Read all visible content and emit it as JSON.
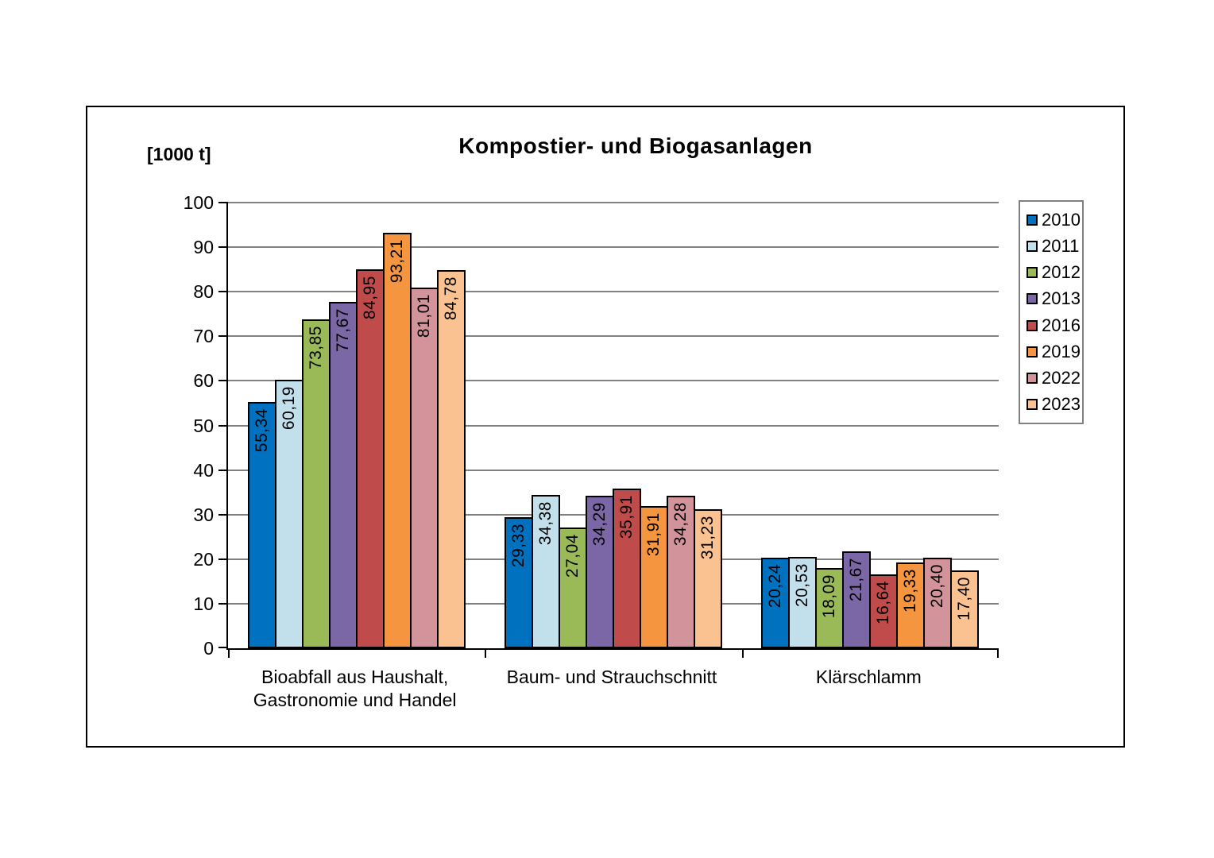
{
  "chart": {
    "title": "Kompostier- und Biogasanlagen",
    "unit_label": "[1000 t]"
  },
  "chart_data": {
    "type": "bar",
    "title": "Kompostier- und Biogasanlagen",
    "ylabel": "[1000 t]",
    "xlabel": "",
    "ylim": [
      0,
      100
    ],
    "ytick_step": 10,
    "yticks": [
      0,
      10,
      20,
      30,
      40,
      50,
      60,
      70,
      80,
      90,
      100
    ],
    "grid": true,
    "gridline_color": "#808080",
    "axis_color": "#000000",
    "bar_border_color": "#000000",
    "legend_position": "right",
    "value_label_decimal_separator": ",",
    "categories": [
      "Bioabfall aus Haushalt,\nGastronomie und Handel",
      "Baum- und Strauchschnitt",
      "Klärschlamm"
    ],
    "series": [
      {
        "name": "2010",
        "color": "#0071BE",
        "values": [
          55.34,
          29.33,
          20.24
        ]
      },
      {
        "name": "2011",
        "color": "#C2E0EB",
        "values": [
          60.19,
          34.38,
          20.53
        ]
      },
      {
        "name": "2012",
        "color": "#9ABA58",
        "values": [
          73.85,
          27.04,
          18.09
        ]
      },
      {
        "name": "2013",
        "color": "#7B67A6",
        "values": [
          77.67,
          34.29,
          21.67
        ]
      },
      {
        "name": "2016",
        "color": "#BF4B4B",
        "values": [
          84.95,
          35.91,
          16.64
        ]
      },
      {
        "name": "2019",
        "color": "#F6953F",
        "values": [
          93.21,
          31.91,
          19.33
        ]
      },
      {
        "name": "2022",
        "color": "#D2939A",
        "values": [
          81.01,
          34.28,
          20.4
        ]
      },
      {
        "name": "2023",
        "color": "#FAC291",
        "values": [
          84.78,
          31.23,
          17.4
        ]
      }
    ],
    "value_labels": [
      [
        "55,34",
        "29,33",
        "20,24"
      ],
      [
        "60,19",
        "34,38",
        "20,53"
      ],
      [
        "73,85",
        "27,04",
        "18,09"
      ],
      [
        "77,67",
        "34,29",
        "21,67"
      ],
      [
        "84,95",
        "35,91",
        "16,64"
      ],
      [
        "93,21",
        "31,91",
        "19,33"
      ],
      [
        "81,01",
        "34,28",
        "20,40"
      ],
      [
        "84,78",
        "31,23",
        "17,40"
      ]
    ]
  }
}
